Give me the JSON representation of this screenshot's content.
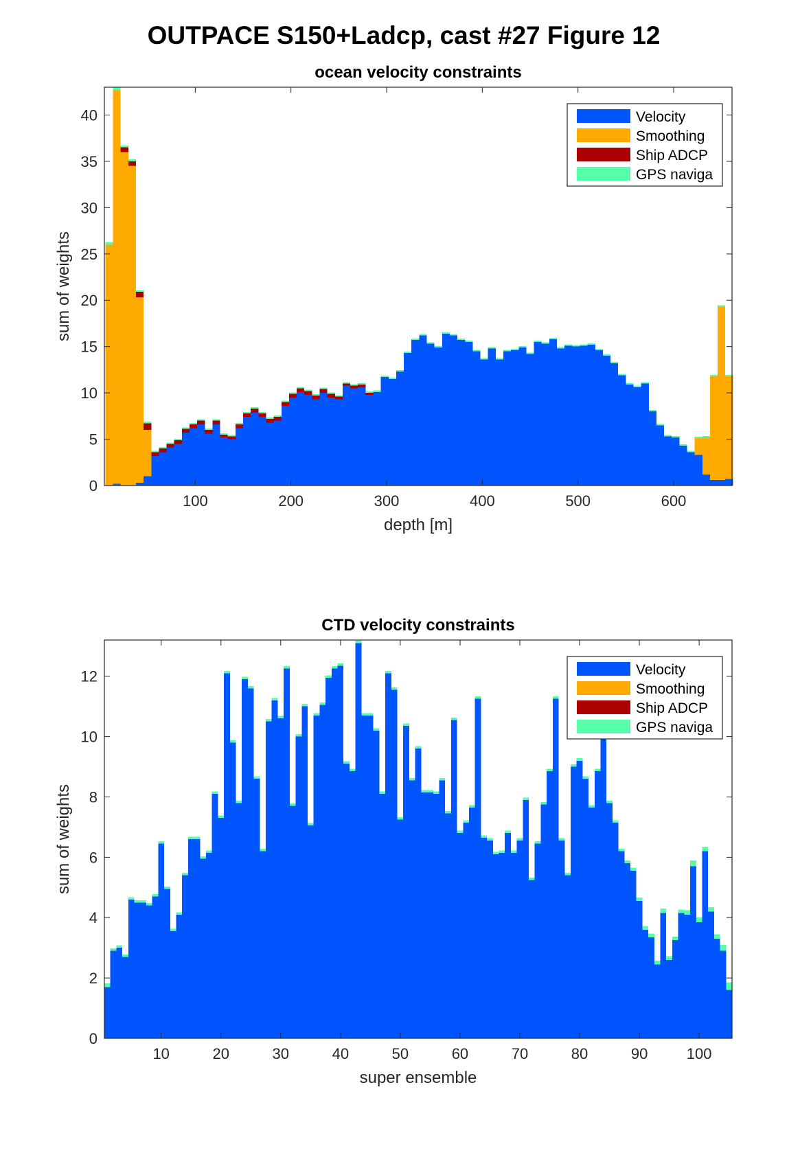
{
  "page": {
    "suptitle": "OUTPACE S150+Ladcp, cast #27  Figure 12"
  },
  "colors": {
    "velocity": "#0055ff",
    "smoothing": "#ffaa00",
    "ship_adcp": "#aa0000",
    "gps": "#55ffaa"
  },
  "chart_data": [
    {
      "id": "ocean",
      "type": "bar",
      "stacked": true,
      "title": "ocean velocity constraints",
      "xlabel": "depth [m]",
      "ylabel": "sum of weights",
      "xlim": [
        5,
        661
      ],
      "ylim": [
        0,
        43
      ],
      "bar_width": 8,
      "xticks": [
        100,
        200,
        300,
        400,
        500,
        600
      ],
      "yticks": [
        0,
        5,
        10,
        15,
        20,
        25,
        30,
        35,
        40
      ],
      "grid": false,
      "legend_position": "top-right",
      "legend": [
        "Velocity",
        "Smoothing",
        "Ship ADCP",
        "GPS naviga"
      ],
      "series_order": [
        "velocity",
        "smoothing",
        "ship_adcp",
        "gps"
      ],
      "x": [
        10,
        18,
        26,
        34,
        42,
        50,
        58,
        66,
        74,
        82,
        90,
        98,
        106,
        114,
        122,
        130,
        138,
        146,
        154,
        162,
        170,
        178,
        186,
        194,
        202,
        210,
        218,
        226,
        234,
        242,
        250,
        258,
        266,
        274,
        282,
        290,
        298,
        306,
        314,
        322,
        330,
        338,
        346,
        354,
        362,
        370,
        378,
        386,
        394,
        402,
        410,
        418,
        426,
        434,
        442,
        450,
        458,
        466,
        474,
        482,
        490,
        498,
        506,
        514,
        522,
        530,
        538,
        546,
        554,
        562,
        570,
        578,
        586,
        594,
        602,
        610,
        618,
        626,
        634,
        642,
        650,
        658
      ],
      "series": [
        {
          "name": "Velocity",
          "key": "velocity",
          "values": [
            0,
            0.2,
            0,
            0,
            0.3,
            1,
            3.2,
            3.6,
            4.1,
            4.5,
            5.7,
            6.2,
            6.6,
            5.6,
            6.6,
            5.2,
            5,
            6.2,
            7.4,
            7.9,
            7.4,
            6.8,
            7,
            8.6,
            9.5,
            10.1,
            9.8,
            9.3,
            10,
            9.5,
            9.3,
            10.8,
            10.5,
            10.6,
            9.8,
            10,
            11.7,
            11.5,
            12.3,
            14.3,
            15.7,
            16.2,
            15.3,
            14.9,
            16.4,
            16.2,
            15.7,
            15.5,
            14.5,
            13.6,
            14.8,
            13.6,
            14.5,
            14.6,
            14.9,
            14.2,
            15.5,
            15.3,
            15.8,
            14.8,
            15.1,
            15,
            15.1,
            15.2,
            14.6,
            14,
            13.2,
            11.9,
            10.9,
            10.6,
            11,
            8,
            6.5,
            5.3,
            5.2,
            4.3,
            3.6,
            3.3,
            1.2,
            0.6,
            0.6,
            0.7
          ]
        },
        {
          "name": "Smoothing",
          "key": "smoothing",
          "values": [
            26,
            42.5,
            36,
            34.5,
            20,
            5,
            0,
            0,
            0,
            0,
            0,
            0,
            0,
            0,
            0,
            0,
            0,
            0,
            0,
            0,
            0,
            0,
            0,
            0,
            0,
            0,
            0,
            0,
            0,
            0,
            0,
            0,
            0,
            0,
            0,
            0,
            0,
            0,
            0,
            0,
            0,
            0,
            0,
            0,
            0,
            0,
            0,
            0,
            0,
            0,
            0,
            0,
            0,
            0,
            0,
            0,
            0,
            0,
            0,
            0,
            0,
            0,
            0,
            0,
            0,
            0,
            0,
            0,
            0,
            0,
            0,
            0,
            0,
            0,
            0,
            0,
            0,
            1.8,
            4,
            11.2,
            18.7,
            11.1
          ]
        },
        {
          "name": "Ship ADCP",
          "key": "ship_adcp",
          "values": [
            0,
            0,
            0.5,
            0.5,
            0.6,
            0.7,
            0.4,
            0.4,
            0.4,
            0.4,
            0.4,
            0.4,
            0.4,
            0.4,
            0.4,
            0.3,
            0.3,
            0.4,
            0.4,
            0.4,
            0.4,
            0.4,
            0.4,
            0.4,
            0.4,
            0.4,
            0.4,
            0.4,
            0.4,
            0.4,
            0.3,
            0.2,
            0.3,
            0.3,
            0.2,
            0.1,
            0,
            0,
            0,
            0,
            0,
            0,
            0,
            0,
            0,
            0,
            0,
            0,
            0,
            0,
            0,
            0,
            0,
            0,
            0,
            0,
            0,
            0,
            0,
            0,
            0,
            0,
            0,
            0,
            0,
            0,
            0,
            0,
            0,
            0,
            0,
            0,
            0,
            0,
            0,
            0,
            0,
            0,
            0,
            0,
            0,
            0
          ]
        },
        {
          "name": "GPS naviga",
          "key": "gps",
          "values": [
            0.3,
            0.3,
            0.2,
            0.2,
            0.2,
            0.2,
            0.15,
            0.15,
            0.15,
            0.15,
            0.15,
            0.15,
            0.15,
            0.15,
            0.15,
            0.15,
            0.15,
            0.15,
            0.15,
            0.15,
            0.15,
            0.15,
            0.15,
            0.15,
            0.15,
            0.15,
            0.15,
            0.15,
            0.15,
            0.15,
            0.15,
            0.15,
            0.15,
            0.15,
            0.15,
            0.15,
            0.15,
            0.15,
            0.15,
            0.15,
            0.15,
            0.15,
            0.15,
            0.15,
            0.15,
            0.15,
            0.15,
            0.15,
            0.15,
            0.15,
            0.15,
            0.15,
            0.15,
            0.15,
            0.15,
            0.15,
            0.15,
            0.15,
            0.15,
            0.15,
            0.15,
            0.15,
            0.15,
            0.15,
            0.15,
            0.15,
            0.15,
            0.15,
            0.15,
            0.15,
            0.15,
            0.15,
            0.15,
            0.15,
            0.15,
            0.15,
            0.15,
            0.15,
            0.15,
            0.15,
            0.15,
            0.15
          ]
        }
      ]
    },
    {
      "id": "ctd",
      "type": "bar",
      "stacked": true,
      "title": "CTD velocity constraints",
      "xlabel": "super ensemble",
      "ylabel": "sum of weights",
      "xlim": [
        0.5,
        105.5
      ],
      "ylim": [
        0,
        13.2
      ],
      "bar_width": 1,
      "xticks": [
        10,
        20,
        30,
        40,
        50,
        60,
        70,
        80,
        90,
        100
      ],
      "yticks": [
        0,
        2,
        4,
        6,
        8,
        10,
        12
      ],
      "grid": false,
      "legend_position": "top-right",
      "legend": [
        "Velocity",
        "Smoothing",
        "Ship ADCP",
        "GPS naviga"
      ],
      "series_order": [
        "velocity",
        "smoothing",
        "ship_adcp",
        "gps"
      ],
      "x": [
        1,
        2,
        3,
        4,
        5,
        6,
        7,
        8,
        9,
        10,
        11,
        12,
        13,
        14,
        15,
        16,
        17,
        18,
        19,
        20,
        21,
        22,
        23,
        24,
        25,
        26,
        27,
        28,
        29,
        30,
        31,
        32,
        33,
        34,
        35,
        36,
        37,
        38,
        39,
        40,
        41,
        42,
        43,
        44,
        45,
        46,
        47,
        48,
        49,
        50,
        51,
        52,
        53,
        54,
        55,
        56,
        57,
        58,
        59,
        60,
        61,
        62,
        63,
        64,
        65,
        66,
        67,
        68,
        69,
        70,
        71,
        72,
        73,
        74,
        75,
        76,
        77,
        78,
        79,
        80,
        81,
        82,
        83,
        84,
        85,
        86,
        87,
        88,
        89,
        90,
        91,
        92,
        93,
        94,
        95,
        96,
        97,
        98,
        99,
        100,
        101,
        102,
        103,
        104,
        105
      ],
      "series": [
        {
          "name": "Velocity",
          "key": "velocity",
          "values": [
            1.7,
            2.9,
            3.0,
            2.7,
            4.6,
            4.5,
            4.5,
            4.4,
            4.7,
            6.45,
            4.95,
            3.55,
            4.1,
            5.4,
            6.6,
            6.6,
            5.95,
            6.15,
            8.1,
            7.3,
            12.1,
            9.8,
            7.8,
            11.9,
            11.6,
            8.6,
            6.2,
            10.5,
            11.2,
            10.6,
            12.25,
            7.7,
            10.0,
            11.0,
            7.05,
            10.7,
            11.05,
            11.95,
            12.25,
            12.35,
            9.1,
            8.85,
            13.1,
            10.7,
            10.7,
            10.2,
            8.1,
            12.1,
            11.55,
            7.25,
            10.35,
            8.55,
            9.6,
            8.15,
            8.15,
            8.1,
            8.55,
            7.45,
            10.55,
            6.8,
            7.15,
            7.65,
            11.25,
            6.65,
            6.55,
            6.1,
            6.15,
            6.8,
            6.15,
            6.55,
            7.9,
            5.25,
            6.45,
            7.75,
            8.85,
            11.25,
            6.55,
            5.4,
            9.0,
            9.2,
            8.6,
            7.65,
            8.85,
            10.15,
            7.8,
            7.15,
            6.2,
            5.8,
            5.55,
            4.55,
            3.6,
            3.35,
            2.45,
            4.15,
            2.6,
            3.25,
            4.15,
            4.1,
            5.7,
            3.85,
            6.2,
            4.2,
            3.3,
            2.9,
            1.6
          ]
        },
        {
          "name": "Smoothing",
          "key": "smoothing",
          "values": [
            0,
            0,
            0,
            0,
            0,
            0,
            0,
            0,
            0,
            0,
            0,
            0,
            0,
            0,
            0,
            0,
            0,
            0,
            0,
            0,
            0,
            0,
            0,
            0,
            0,
            0,
            0,
            0,
            0,
            0,
            0,
            0,
            0,
            0,
            0,
            0,
            0,
            0,
            0,
            0,
            0,
            0,
            0,
            0,
            0,
            0,
            0,
            0,
            0,
            0,
            0,
            0,
            0,
            0,
            0,
            0,
            0,
            0,
            0,
            0,
            0,
            0,
            0,
            0,
            0,
            0,
            0,
            0,
            0,
            0,
            0,
            0,
            0,
            0,
            0,
            0,
            0,
            0,
            0,
            0,
            0,
            0,
            0,
            0,
            0,
            0,
            0,
            0,
            0,
            0,
            0,
            0,
            0,
            0,
            0,
            0,
            0,
            0,
            0,
            0,
            0,
            0,
            0,
            0,
            0
          ]
        },
        {
          "name": "Ship ADCP",
          "key": "ship_adcp",
          "values": [
            0,
            0,
            0,
            0,
            0,
            0,
            0,
            0,
            0,
            0,
            0,
            0,
            0,
            0,
            0,
            0,
            0,
            0,
            0,
            0,
            0,
            0,
            0,
            0,
            0,
            0,
            0,
            0,
            0,
            0,
            0,
            0,
            0,
            0,
            0,
            0,
            0,
            0,
            0,
            0,
            0,
            0,
            0,
            0,
            0,
            0,
            0,
            0,
            0,
            0,
            0,
            0,
            0,
            0,
            0,
            0,
            0,
            0,
            0,
            0,
            0,
            0,
            0,
            0,
            0,
            0,
            0,
            0,
            0,
            0,
            0,
            0,
            0,
            0,
            0,
            0,
            0,
            0,
            0,
            0,
            0,
            0,
            0,
            0,
            0,
            0,
            0,
            0,
            0,
            0,
            0,
            0,
            0,
            0,
            0,
            0,
            0,
            0,
            0,
            0,
            0,
            0,
            0,
            0,
            0
          ]
        },
        {
          "name": "GPS naviga",
          "key": "gps",
          "values": [
            0.12,
            0.08,
            0.08,
            0.08,
            0.08,
            0.08,
            0.08,
            0.08,
            0.08,
            0.08,
            0.08,
            0.08,
            0.08,
            0.08,
            0.08,
            0.08,
            0.08,
            0.08,
            0.08,
            0.08,
            0.08,
            0.08,
            0.08,
            0.08,
            0.08,
            0.08,
            0.08,
            0.08,
            0.08,
            0.08,
            0.08,
            0.08,
            0.08,
            0.08,
            0.08,
            0.08,
            0.08,
            0.08,
            0.08,
            0.08,
            0.08,
            0.08,
            0.08,
            0.08,
            0.08,
            0.08,
            0.08,
            0.08,
            0.08,
            0.08,
            0.08,
            0.08,
            0.08,
            0.08,
            0.08,
            0.08,
            0.08,
            0.08,
            0.08,
            0.08,
            0.08,
            0.08,
            0.08,
            0.08,
            0.08,
            0.08,
            0.08,
            0.08,
            0.08,
            0.08,
            0.08,
            0.08,
            0.08,
            0.08,
            0.08,
            0.08,
            0.08,
            0.08,
            0.08,
            0.08,
            0.08,
            0.08,
            0.08,
            0.08,
            0.08,
            0.08,
            0.08,
            0.1,
            0.1,
            0.12,
            0.12,
            0.12,
            0.12,
            0.15,
            0.12,
            0.12,
            0.12,
            0.15,
            0.2,
            0.15,
            0.15,
            0.15,
            0.15,
            0.2,
            0.25
          ]
        }
      ]
    }
  ]
}
